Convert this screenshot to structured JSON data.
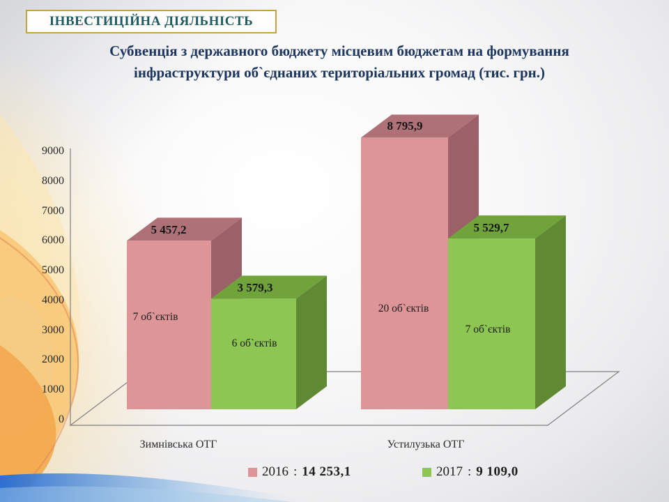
{
  "slide": {
    "badge": "ІНВЕСТИЦІЙНА ДІЯЛЬНІСТЬ",
    "title_line1": "Субвенція з державного бюджету місцевим бюджетам на формування",
    "title_line2": "інфраструктури об`єднаних територіальних громад (тис. грн.)",
    "colors": {
      "badge_border": "#c8a33b",
      "badge_text": "#1e5b63",
      "title_text": "#1d3660",
      "axis_line": "#7f7f7f"
    }
  },
  "chart_data": {
    "type": "bar",
    "projection": "3d",
    "title": "Субвенція з державного бюджету місцевим бюджетам на формування інфраструктури об`єднаних територіальних громад (тис. грн.)",
    "unit": "тис. грн.",
    "categories": [
      "Зимнівська ОТГ",
      "Устилузька ОТГ"
    ],
    "series": [
      {
        "name": "2016",
        "values": [
          5457.2,
          8795.9
        ],
        "value_labels": [
          "5 457,2",
          "8 795,9"
        ],
        "object_counts": [
          "7 об`єктів",
          "20 об`єктів"
        ],
        "total": "14 253,1",
        "color_front": "#dd9597",
        "color_top": "#ae7177",
        "color_side": "#9c6068"
      },
      {
        "name": "2017",
        "values": [
          3579.3,
          5529.7
        ],
        "value_labels": [
          "3 579,3",
          "5 529,7"
        ],
        "object_counts": [
          "6 об`єктів",
          "7 об`єктів"
        ],
        "total": "9 109,0",
        "color_front": "#8dc653",
        "color_top": "#71a33c",
        "color_side": "#5f8a33"
      }
    ],
    "ylim": [
      0,
      9000
    ],
    "yticks": [
      0,
      1000,
      2000,
      3000,
      4000,
      5000,
      6000,
      7000,
      8000,
      9000
    ],
    "grid": false,
    "legend_position": "bottom",
    "legend_separator": " : "
  }
}
